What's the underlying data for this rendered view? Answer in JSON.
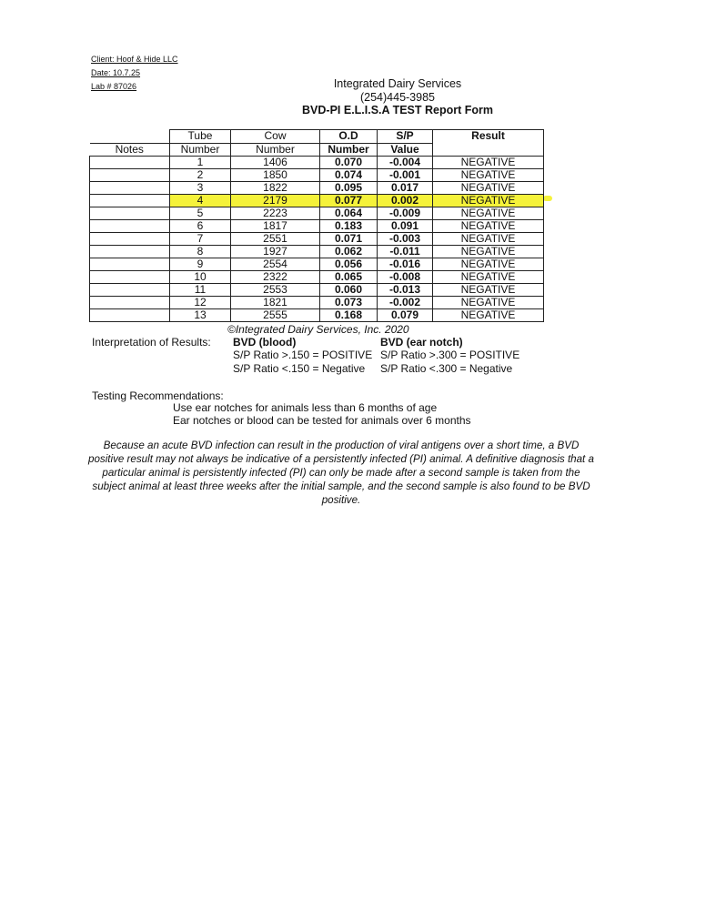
{
  "client": "Client: Hoof & Hide LLC",
  "date": "Date: 10.7.25",
  "lab": "Lab # 87026",
  "header": {
    "company": "Integrated Dairy Services",
    "phone": "(254)445-3985",
    "title": "BVD-PI  E.L.I.S.A TEST Report Form"
  },
  "table": {
    "headers": {
      "notes": "Notes",
      "tube1": "Tube",
      "tube2": "Number",
      "cow1": "Cow",
      "cow2": "Number",
      "od1": "O.D",
      "od2": "Number",
      "sp1": "S/P",
      "sp2": "Value",
      "result": "Result"
    },
    "highlighted_row": 4,
    "highlight_color": "#f5f23a",
    "rows": [
      {
        "notes": "",
        "tube": "1",
        "cow": "1406",
        "od": "0.070",
        "sp": "-0.004",
        "result": "NEGATIVE"
      },
      {
        "notes": "",
        "tube": "2",
        "cow": "1850",
        "od": "0.074",
        "sp": "-0.001",
        "result": "NEGATIVE"
      },
      {
        "notes": "",
        "tube": "3",
        "cow": "1822",
        "od": "0.095",
        "sp": "0.017",
        "result": "NEGATIVE"
      },
      {
        "notes": "",
        "tube": "4",
        "cow": "2179",
        "od": "0.077",
        "sp": "0.002",
        "result": "NEGATIVE"
      },
      {
        "notes": "",
        "tube": "5",
        "cow": "2223",
        "od": "0.064",
        "sp": "-0.009",
        "result": "NEGATIVE"
      },
      {
        "notes": "",
        "tube": "6",
        "cow": "1817",
        "od": "0.183",
        "sp": "0.091",
        "result": "NEGATIVE"
      },
      {
        "notes": "",
        "tube": "7",
        "cow": "2551",
        "od": "0.071",
        "sp": "-0.003",
        "result": "NEGATIVE"
      },
      {
        "notes": "",
        "tube": "8",
        "cow": "1927",
        "od": "0.062",
        "sp": "-0.011",
        "result": "NEGATIVE"
      },
      {
        "notes": "",
        "tube": "9",
        "cow": "2554",
        "od": "0.056",
        "sp": "-0.016",
        "result": "NEGATIVE"
      },
      {
        "notes": "",
        "tube": "10",
        "cow": "2322",
        "od": "0.065",
        "sp": "-0.008",
        "result": "NEGATIVE"
      },
      {
        "notes": "",
        "tube": "11",
        "cow": "2553",
        "od": "0.060",
        "sp": "-0.013",
        "result": "NEGATIVE"
      },
      {
        "notes": "",
        "tube": "12",
        "cow": "1821",
        "od": "0.073",
        "sp": "-0.002",
        "result": "NEGATIVE"
      },
      {
        "notes": "",
        "tube": "13",
        "cow": "2555",
        "od": "0.168",
        "sp": "0.079",
        "result": "NEGATIVE"
      }
    ]
  },
  "copyright": "©Integrated Dairy Services, Inc. 2020",
  "interpretation": {
    "label": "Interpretation of Results:",
    "blood": {
      "title": "BVD (blood)",
      "pos": "S/P Ratio >.150 = POSITIVE",
      "neg": "S/P Ratio <.150 = Negative"
    },
    "ear": {
      "title": "BVD (ear notch)",
      "pos": "S/P Ratio >.300 = POSITIVE",
      "neg": "S/P Ratio <.300 = Negative"
    }
  },
  "recommendations": {
    "label": "Testing Recommendations:",
    "line1": "Use ear notches for animals less than 6 months of age",
    "line2": "Ear notches or blood can be tested for animals over 6 months"
  },
  "disclaimer": "Because an acute BVD infection can result in the production of viral antigens over a short time, a BVD positive result may not always be indicative of a persistently infected (PI) animal.  A definitive diagnosis that a particular animal is persistently infected (PI) can only be made after a second sample is taken from the subject animal at least three weeks after the initial sample, and the second sample is also found to be BVD positive."
}
